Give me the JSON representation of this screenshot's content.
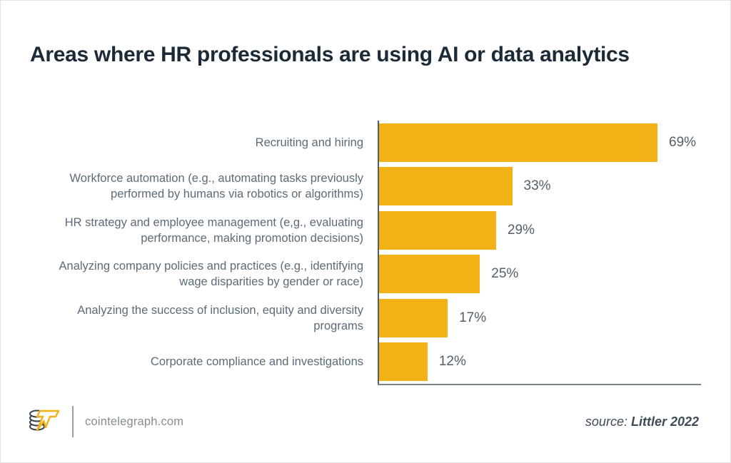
{
  "title": "Areas where HR professionals are using AI or data analytics",
  "chart_data": {
    "type": "bar",
    "orientation": "horizontal",
    "categories": [
      "Recruiting and hiring",
      "Workforce automation (e.g., automating tasks previously performed by humans via robotics or algorithms)",
      "HR strategy and employee management (e,g., evaluating performance, making promotion decisions)",
      "Analyzing company policies and practices (e.g., identifying wage disparities by gender or race)",
      "Analyzing the success of inclusion, equity and diversity programs",
      "Corporate compliance and investigations"
    ],
    "values": [
      69,
      33,
      29,
      25,
      17,
      12
    ],
    "value_labels": [
      "69%",
      "33%",
      "29%",
      "25%",
      "17%",
      "12%"
    ],
    "title": "Areas where HR professionals are using AI or data analytics",
    "xlabel": "",
    "ylabel": "",
    "xlim": [
      0,
      80
    ],
    "grid": false,
    "legend": "none",
    "bar_color": "#f2b216",
    "category_label_color": "#5c6b78",
    "value_label_color": "#525f6a",
    "axis_color": "#525c64"
  },
  "footer": {
    "brand": "cointelegraph.com",
    "logo_icon": "cointelegraph-coin-stack-lightning-logo",
    "source_prefix": "source: ",
    "source_value": "Littler 2022"
  }
}
